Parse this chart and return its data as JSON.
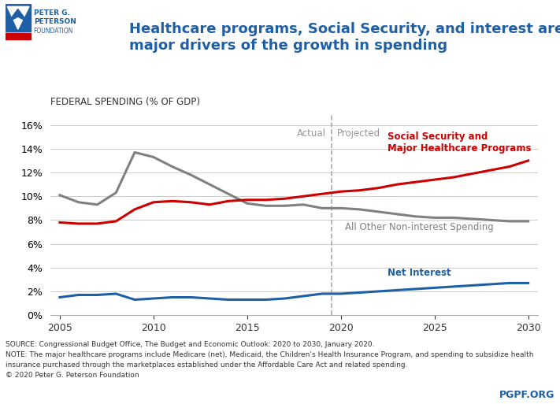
{
  "title_line1": "Healthcare programs, Social Security, and interest are the",
  "title_line2": "major drivers of the growth in spending",
  "ylabel": "Federal Spending (% of GDP)",
  "ylim": [
    0,
    17
  ],
  "yticks": [
    0,
    2,
    4,
    6,
    8,
    10,
    12,
    14,
    16
  ],
  "ytick_labels": [
    "0%",
    "2%",
    "4%",
    "6%",
    "8%",
    "10%",
    "12%",
    "14%",
    "16%"
  ],
  "xlim": [
    2004.5,
    2030.5
  ],
  "xticks": [
    2005,
    2010,
    2015,
    2020,
    2025,
    2030
  ],
  "actual_projected_year": 2019.5,
  "social_security": {
    "years": [
      2005,
      2006,
      2007,
      2008,
      2009,
      2010,
      2011,
      2012,
      2013,
      2014,
      2015,
      2016,
      2017,
      2018,
      2019,
      2020,
      2021,
      2022,
      2023,
      2024,
      2025,
      2026,
      2027,
      2028,
      2029,
      2030
    ],
    "values": [
      7.8,
      7.7,
      7.7,
      7.9,
      8.9,
      9.5,
      9.6,
      9.5,
      9.3,
      9.6,
      9.7,
      9.7,
      9.8,
      10.0,
      10.2,
      10.4,
      10.5,
      10.7,
      11.0,
      11.2,
      11.4,
      11.6,
      11.9,
      12.2,
      12.5,
      13.0
    ],
    "color": "#cc0000",
    "label": "Social Security and\nMajor Healthcare Programs",
    "linewidth": 2.2
  },
  "other_spending": {
    "years": [
      2005,
      2006,
      2007,
      2008,
      2009,
      2010,
      2011,
      2012,
      2013,
      2014,
      2015,
      2016,
      2017,
      2018,
      2019,
      2020,
      2021,
      2022,
      2023,
      2024,
      2025,
      2026,
      2027,
      2028,
      2029,
      2030
    ],
    "values": [
      10.1,
      9.5,
      9.3,
      10.3,
      13.7,
      13.3,
      12.5,
      11.8,
      11.0,
      10.2,
      9.4,
      9.2,
      9.2,
      9.3,
      9.0,
      9.0,
      8.9,
      8.7,
      8.5,
      8.3,
      8.2,
      8.2,
      8.1,
      8.0,
      7.9,
      7.9
    ],
    "color": "#808080",
    "label": "All Other Non-interest Spending",
    "linewidth": 2.2
  },
  "net_interest": {
    "years": [
      2005,
      2006,
      2007,
      2008,
      2009,
      2010,
      2011,
      2012,
      2013,
      2014,
      2015,
      2016,
      2017,
      2018,
      2019,
      2020,
      2021,
      2022,
      2023,
      2024,
      2025,
      2026,
      2027,
      2028,
      2029,
      2030
    ],
    "values": [
      1.5,
      1.7,
      1.7,
      1.8,
      1.3,
      1.4,
      1.5,
      1.5,
      1.4,
      1.3,
      1.3,
      1.3,
      1.4,
      1.6,
      1.8,
      1.8,
      1.9,
      2.0,
      2.1,
      2.2,
      2.3,
      2.4,
      2.5,
      2.6,
      2.7,
      2.7
    ],
    "color": "#1f5fa6",
    "label": "Net Interest",
    "linewidth": 2.2
  },
  "source_text": "SOURCE: Congressional Budget Office, The Budget and Economic Outlook: 2020 to 2030, January 2020.\nNOTE: The major healthcare programs include Medicare (net), Medicaid, the Children’s Health Insurance Program, and spending to subsidize health\ninsurance purchased through the marketplaces established under the Affordable Care Act and related spending.\n© 2020 Peter G. Peterson Foundation",
  "pgpf_text": "PGPF.ORG",
  "header_bg_color": "#ffffff",
  "title_color": "#1f5fa6",
  "logo_blue": "#1f5fa6",
  "logo_red": "#cc0000"
}
